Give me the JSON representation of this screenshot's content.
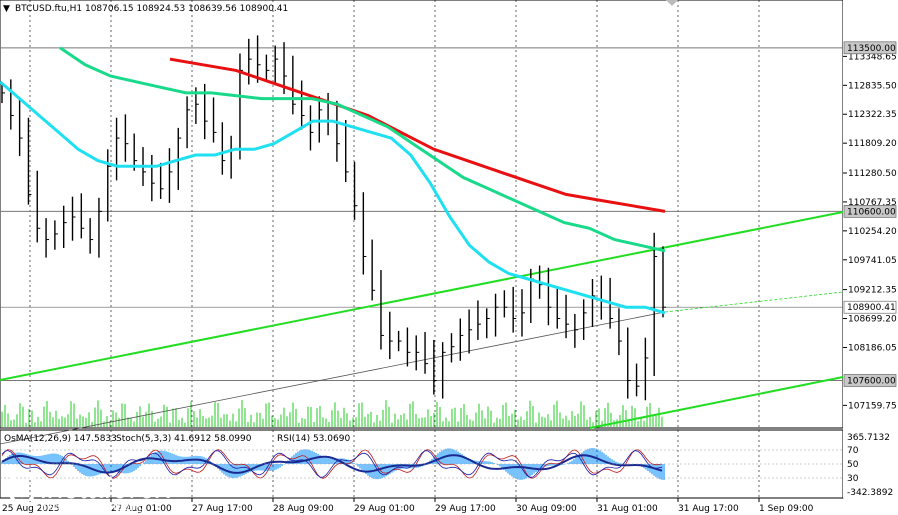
{
  "header": {
    "symbol_line": "BTCUSD.ftu,H1  108706.15 108924.53 108639.56 108900.41"
  },
  "indicators": {
    "osma_label": "OsMA(12,26,9) 147.5833",
    "stoch_label": "Stoch(5,3,3) 41.6912 58.0990",
    "rsi_label": "RSI(14) 53.0690"
  },
  "price_axis": {
    "ticks": [
      "113348.65",
      "112835.50",
      "112322.35",
      "111809.20",
      "111280.50",
      "110767.35",
      "110254.20",
      "109741.05",
      "109212.35",
      "108699.20",
      "108186.05",
      "107159.75"
    ],
    "levels": [
      {
        "label": "113500.00",
        "value": 113500,
        "style": "gray"
      },
      {
        "label": "110600.00",
        "value": 110600,
        "style": "gray"
      },
      {
        "label": "108900.41",
        "value": 108900.41,
        "style": "current"
      },
      {
        "label": "107600.00",
        "value": 107600,
        "style": "gray"
      }
    ],
    "min": 106900,
    "max": 114100
  },
  "sub_axis": {
    "top_label": "365.7132",
    "bottom_label": "-342.3892",
    "levels": [
      "70",
      "50",
      "30"
    ]
  },
  "time_axis": {
    "labels": [
      "25 Aug 2025",
      "27 Aug 01:00",
      "27 Aug 17:00",
      "28 Aug 09:00",
      "29 Aug 01:00",
      "29 Aug 17:00",
      "30 Aug 09:00",
      "31 Aug 01:00",
      "31 Aug 17:00",
      "1 Sep 09:00"
    ]
  },
  "watermark": {
    "brand": "instaforex",
    "tagline": "Instant Forex Trading"
  },
  "colors": {
    "ma_red": "#e81010",
    "ma_green": "#19d98a",
    "ma_cyan": "#1ee0f0",
    "channel": "#22dd22",
    "bars": "#000000",
    "volume": "#22cc22",
    "osma": "#3fa9ff",
    "stoch_main": "#c01818",
    "stoch_signal": "#1a1aa8",
    "rsi": "#1a2a90"
  },
  "chart_data": {
    "type": "line",
    "title": "BTCUSD.ftu,H1",
    "timeframe": "H1",
    "ohlc_last": {
      "open": 108706.15,
      "high": 108924.53,
      "low": 108639.56,
      "close": 108900.41
    },
    "close_series": [
      112700,
      112300,
      111900,
      110900,
      110300,
      110100,
      110200,
      110400,
      110500,
      110300,
      110100,
      110600,
      111400,
      111900,
      111800,
      111500,
      111300,
      111100,
      111000,
      111300,
      111900,
      112400,
      112500,
      112200,
      112000,
      111500,
      111700,
      113100,
      113300,
      113200,
      113100,
      113300,
      113000,
      112500,
      112300,
      112000,
      112400,
      112200,
      111800,
      111300,
      110700,
      109800,
      109200,
      108400,
      108300,
      108300,
      108100,
      108100,
      107900,
      107600,
      108100,
      108200,
      108400,
      108500,
      108600,
      108700,
      108900,
      108900,
      108700,
      108800,
      109400,
      109300,
      108900,
      108700,
      108600,
      108500,
      108800,
      109100,
      109000,
      108700,
      108300,
      107600,
      107500,
      108000,
      109800,
      108900
    ],
    "ma_cyan": [
      112900,
      112600,
      112300,
      112000,
      111700,
      111500,
      111400,
      111400,
      111400,
      111500,
      111600,
      111600,
      111700,
      111700,
      111800,
      112000,
      112200,
      112200,
      112100,
      112000,
      111900,
      111600,
      111100,
      110500,
      110000,
      109700,
      109500,
      109400,
      109300,
      109200,
      109100,
      109000,
      108900,
      108900,
      108800
    ],
    "ma_green": [
      113500,
      113200,
      113000,
      112900,
      112800,
      112700,
      112700,
      112650,
      112600,
      112600,
      112600,
      112500,
      112300,
      112100,
      111800,
      111500,
      111200,
      111000,
      110800,
      110600,
      110400,
      110300,
      110100,
      110000,
      109900
    ],
    "ma_red": [
      113300,
      113200,
      113100,
      112900,
      112700,
      112500,
      112300,
      112000,
      111700,
      111500,
      111300,
      111100,
      110900,
      110800,
      110700,
      110600
    ]
  }
}
